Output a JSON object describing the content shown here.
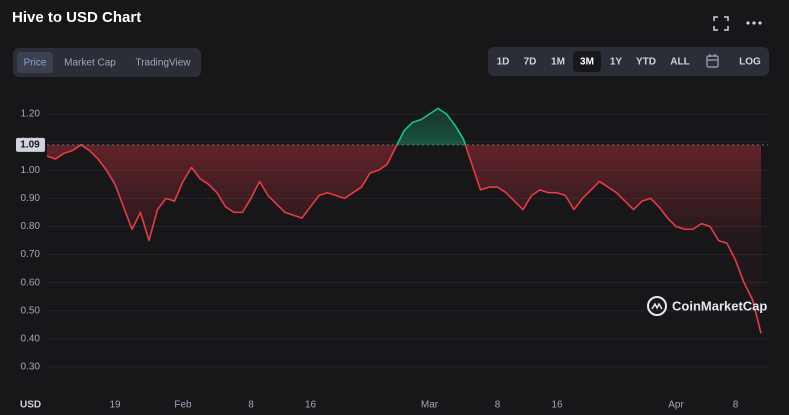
{
  "ui": {
    "title": "Hive to USD Chart",
    "tabs": [
      "Price",
      "Market Cap",
      "TradingView"
    ],
    "ranges": [
      "1D",
      "7D",
      "1M",
      "3M",
      "1Y",
      "YTD",
      "ALL"
    ],
    "log": "LOG",
    "watermark": "CoinMarketCap"
  },
  "chart_data": {
    "type": "line",
    "y_axis_label": "USD",
    "categories": [
      null,
      null,
      null,
      null,
      null,
      null,
      null,
      null,
      "19",
      null,
      null,
      null,
      null,
      null,
      null,
      null,
      "Feb",
      null,
      null,
      null,
      null,
      null,
      null,
      null,
      "8",
      null,
      null,
      null,
      null,
      null,
      null,
      "16",
      null,
      null,
      null,
      null,
      null,
      null,
      null,
      null,
      null,
      null,
      null,
      null,
      null,
      "Mar",
      null,
      null,
      null,
      null,
      null,
      null,
      null,
      "8",
      null,
      null,
      null,
      null,
      null,
      null,
      "16",
      null,
      null,
      null,
      null,
      null,
      null,
      null,
      null,
      null,
      null,
      null,
      null,
      null,
      "Apr",
      null,
      null,
      null,
      null,
      null,
      null,
      "8",
      null,
      null,
      null
    ],
    "values": [
      1.05,
      1.04,
      1.06,
      1.07,
      1.09,
      1.07,
      1.04,
      1.0,
      0.95,
      0.87,
      0.79,
      0.85,
      0.75,
      0.86,
      0.9,
      0.89,
      0.96,
      1.01,
      0.97,
      0.95,
      0.92,
      0.87,
      0.85,
      0.85,
      0.9,
      0.96,
      0.91,
      0.88,
      0.85,
      0.84,
      0.83,
      0.87,
      0.91,
      0.92,
      0.91,
      0.9,
      0.92,
      0.94,
      0.99,
      1.0,
      1.02,
      1.08,
      1.14,
      1.17,
      1.18,
      1.2,
      1.22,
      1.2,
      1.16,
      1.11,
      1.02,
      0.93,
      0.94,
      0.94,
      0.92,
      0.89,
      0.86,
      0.91,
      0.93,
      0.92,
      0.92,
      0.91,
      0.86,
      0.9,
      0.93,
      0.96,
      0.94,
      0.92,
      0.89,
      0.86,
      0.89,
      0.9,
      0.87,
      0.83,
      0.8,
      0.79,
      0.79,
      0.81,
      0.8,
      0.75,
      0.74,
      0.68,
      0.6,
      0.54,
      0.42
    ],
    "baseline": 1.09,
    "color_above": "#16c784",
    "color_below": "#ea3943",
    "ylim": [
      0.22,
      1.28
    ],
    "yticks": [
      {
        "value": 0.3,
        "label": "0.30"
      },
      {
        "value": 0.4,
        "label": "0.40"
      },
      {
        "value": 0.5,
        "label": "0.50"
      },
      {
        "value": 0.6,
        "label": "0.60"
      },
      {
        "value": 0.7,
        "label": "0.70"
      },
      {
        "value": 0.8,
        "label": "0.80"
      },
      {
        "value": 0.9,
        "label": "0.90"
      },
      {
        "value": 1.0,
        "label": "1.00"
      },
      {
        "value": 1.1,
        "label": "1.10"
      },
      {
        "value": 1.2,
        "label": "1.20"
      }
    ],
    "grid": true
  }
}
